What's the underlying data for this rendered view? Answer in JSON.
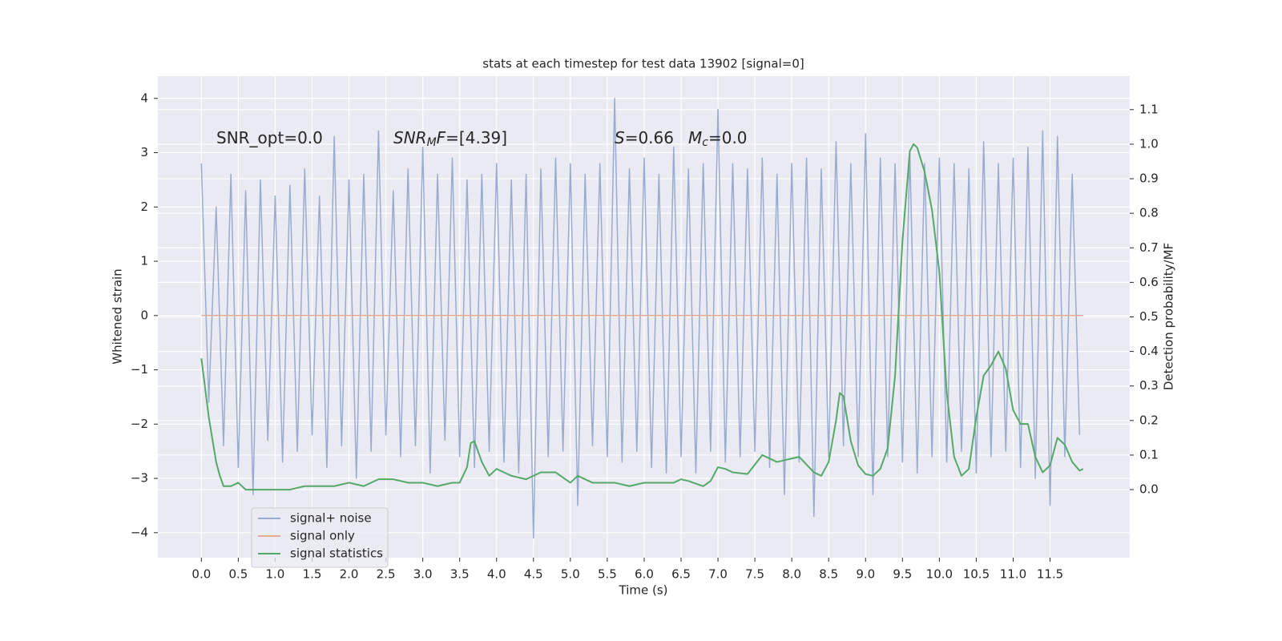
{
  "chart_data": {
    "type": "line",
    "title": "stats at each timestep for test data 13902 [signal=0]",
    "xlabel": "Time (s)",
    "ylabel": "Whitened strain",
    "y2label": "Detection probability/MF",
    "xlim": [
      -0.59,
      12.58
    ],
    "ylim": [
      -4.46,
      4.41
    ],
    "y2lim": [
      -0.197,
      1.197
    ],
    "grid": true,
    "legend": "lower left",
    "xticks": [
      {
        "value": 0,
        "label": "0.0"
      },
      {
        "value": 0.5,
        "label": "0.5"
      },
      {
        "value": 1,
        "label": "1.0"
      },
      {
        "value": 1.5,
        "label": "1.5"
      },
      {
        "value": 2,
        "label": "2.0"
      },
      {
        "value": 2.5,
        "label": "2.5"
      },
      {
        "value": 3,
        "label": "3.0"
      },
      {
        "value": 3.5,
        "label": "3.5"
      },
      {
        "value": 4,
        "label": "4.0"
      },
      {
        "value": 4.5,
        "label": "4.5"
      },
      {
        "value": 5,
        "label": "5.0"
      },
      {
        "value": 5.5,
        "label": "5.5"
      },
      {
        "value": 6,
        "label": "6.0"
      },
      {
        "value": 6.5,
        "label": "6.5"
      },
      {
        "value": 7,
        "label": "7.0"
      },
      {
        "value": 7.5,
        "label": "7.5"
      },
      {
        "value": 8,
        "label": "8.0"
      },
      {
        "value": 8.5,
        "label": "8.5"
      },
      {
        "value": 9,
        "label": "9.0"
      },
      {
        "value": 9.5,
        "label": "9.5"
      },
      {
        "value": 10,
        "label": "10.0"
      },
      {
        "value": 10.5,
        "label": "10.5"
      },
      {
        "value": 11,
        "label": "11.0"
      },
      {
        "value": 11.5,
        "label": "11.5"
      }
    ],
    "yticks": [
      {
        "value": -4,
        "label": "−4"
      },
      {
        "value": -3,
        "label": "−3"
      },
      {
        "value": -2,
        "label": "−2"
      },
      {
        "value": -1,
        "label": "−1"
      },
      0,
      1,
      2,
      3,
      4
    ],
    "y2ticks": [
      {
        "value": 0,
        "label": "0.0"
      },
      0.1,
      0.2,
      0.3,
      0.4,
      0.5,
      0.6,
      0.7,
      0.8,
      0.9,
      {
        "value": 1,
        "label": "1.0"
      },
      1.1
    ],
    "annotations": [
      {
        "parts": [
          {
            "text": "SNR_opt=0.0"
          }
        ]
      },
      {
        "parts": [
          {
            "text": "SNR",
            "italic": true
          },
          {
            "text": "M",
            "italic": true,
            "sub": true
          },
          {
            "text": "F",
            "italic": true
          },
          {
            "text": "=[4.39]"
          }
        ]
      },
      {
        "parts": [
          {
            "text": "S",
            "italic": true
          },
          {
            "text": "=0.66"
          }
        ]
      },
      {
        "parts": [
          {
            "text": "M",
            "italic": true
          },
          {
            "text": "c",
            "italic": true,
            "sub": true
          },
          {
            "text": "=0.0"
          }
        ]
      }
    ],
    "series": [
      {
        "name": "signal+ noise",
        "color": "#9aabd0",
        "x": [
          0,
          0.1,
          0.2,
          0.3,
          0.4,
          0.5,
          0.6,
          0.7,
          0.8,
          0.9,
          1,
          1.1,
          1.2,
          1.3,
          1.4,
          1.5,
          1.6,
          1.7,
          1.8,
          1.9,
          2,
          2.1,
          2.2,
          2.3,
          2.4,
          2.5,
          2.6,
          2.7,
          2.8,
          2.9,
          3,
          3.1,
          3.2,
          3.3,
          3.4,
          3.5,
          3.6,
          3.7,
          3.8,
          3.9,
          4,
          4.1,
          4.2,
          4.3,
          4.4,
          4.5,
          4.6,
          4.7,
          4.8,
          4.9,
          5,
          5.1,
          5.2,
          5.3,
          5.4,
          5.5,
          5.6,
          5.7,
          5.8,
          5.9,
          6,
          6.1,
          6.2,
          6.3,
          6.4,
          6.5,
          6.6,
          6.7,
          6.8,
          6.9,
          7,
          7.1,
          7.2,
          7.3,
          7.4,
          7.5,
          7.6,
          7.7,
          7.8,
          7.9,
          8,
          8.1,
          8.2,
          8.3,
          8.4,
          8.5,
          8.6,
          8.7,
          8.8,
          8.9,
          9,
          9.1,
          9.2,
          9.3,
          9.4,
          9.5,
          9.6,
          9.7,
          9.8,
          9.9,
          10,
          10.1,
          10.2,
          10.3,
          10.4,
          10.5,
          10.6,
          10.7,
          10.8,
          10.9,
          11,
          11.1,
          11.2,
          11.3,
          11.4,
          11.5,
          11.6,
          11.7,
          11.8,
          11.9
        ],
        "values": [
          2.8,
          -1.6,
          2.0,
          -2.4,
          2.6,
          -2.8,
          2.3,
          -3.3,
          2.5,
          -2.3,
          2.2,
          -2.7,
          2.4,
          -2.5,
          2.7,
          -2.2,
          2.2,
          -2.8,
          3.3,
          -2.4,
          2.5,
          -3.0,
          2.6,
          -2.5,
          3.4,
          -2.2,
          2.3,
          -2.6,
          2.7,
          -2.4,
          3.1,
          -2.9,
          2.6,
          -2.3,
          2.9,
          -2.6,
          2.5,
          -2.8,
          2.6,
          -2.5,
          2.8,
          -2.7,
          2.5,
          -2.9,
          2.6,
          -4.1,
          2.7,
          -2.6,
          2.9,
          -2.5,
          2.8,
          -3.5,
          2.6,
          -2.4,
          2.8,
          -2.6,
          4.0,
          -2.7,
          2.7,
          -2.5,
          2.9,
          -2.8,
          2.6,
          -2.9,
          3.1,
          -2.6,
          2.7,
          -2.9,
          2.8,
          -2.5,
          3.8,
          -2.7,
          2.8,
          -2.6,
          2.7,
          -2.5,
          2.9,
          -2.8,
          2.6,
          -3.3,
          2.8,
          -2.7,
          2.9,
          -3.7,
          2.7,
          -2.6,
          3.2,
          -2.4,
          2.8,
          -2.6,
          3.35,
          -3.3,
          2.9,
          -2.6,
          2.8,
          -2.7,
          3.0,
          -2.9,
          2.8,
          -2.6,
          2.9,
          -2.7,
          2.8,
          -2.5,
          2.7,
          -2.9,
          3.2,
          -2.6,
          2.8,
          -2.5,
          2.9,
          -2.8,
          3.1,
          -3.0,
          3.4,
          -3.5,
          3.3,
          -2.6,
          2.6,
          -2.2
        ]
      },
      {
        "name": "signal only",
        "color": "#e5ab93",
        "x": [
          0,
          11.95
        ],
        "values": [
          0,
          0
        ]
      },
      {
        "name": "signal statistics",
        "color": "#55a868",
        "axis": "y2",
        "x": [
          0,
          0.1,
          0.2,
          0.25,
          0.3,
          0.4,
          0.5,
          0.6,
          0.8,
          1,
          1.2,
          1.4,
          1.6,
          1.8,
          2,
          2.2,
          2.4,
          2.6,
          2.8,
          3,
          3.2,
          3.4,
          3.5,
          3.6,
          3.65,
          3.7,
          3.8,
          3.9,
          4,
          4.1,
          4.2,
          4.4,
          4.6,
          4.8,
          5,
          5.1,
          5.3,
          5.6,
          5.8,
          6,
          6.2,
          6.4,
          6.5,
          6.6,
          6.8,
          6.9,
          7,
          7.1,
          7.2,
          7.4,
          7.6,
          7.8,
          8,
          8.1,
          8.3,
          8.4,
          8.5,
          8.6,
          8.65,
          8.7,
          8.8,
          8.9,
          9,
          9.1,
          9.2,
          9.3,
          9.4,
          9.5,
          9.6,
          9.65,
          9.7,
          9.8,
          9.9,
          10,
          10.1,
          10.2,
          10.3,
          10.4,
          10.5,
          10.6,
          10.7,
          10.8,
          10.9,
          11,
          11.1,
          11.2,
          11.3,
          11.4,
          11.5,
          11.6,
          11.7,
          11.8,
          11.9,
          11.95
        ],
        "values": [
          0.38,
          0.21,
          0.08,
          0.04,
          0.01,
          0.01,
          0.02,
          0.0,
          0.0,
          0.0,
          0.0,
          0.01,
          0.01,
          0.01,
          0.02,
          0.01,
          0.03,
          0.03,
          0.02,
          0.02,
          0.01,
          0.02,
          0.02,
          0.065,
          0.135,
          0.14,
          0.08,
          0.04,
          0.06,
          0.05,
          0.04,
          0.03,
          0.05,
          0.05,
          0.02,
          0.04,
          0.02,
          0.02,
          0.01,
          0.02,
          0.02,
          0.02,
          0.03,
          0.025,
          0.01,
          0.025,
          0.065,
          0.06,
          0.05,
          0.045,
          0.1,
          0.08,
          0.09,
          0.095,
          0.05,
          0.04,
          0.08,
          0.2,
          0.28,
          0.27,
          0.14,
          0.07,
          0.045,
          0.04,
          0.06,
          0.12,
          0.33,
          0.72,
          0.98,
          1.0,
          0.99,
          0.92,
          0.81,
          0.63,
          0.28,
          0.095,
          0.04,
          0.06,
          0.21,
          0.33,
          0.36,
          0.4,
          0.35,
          0.23,
          0.19,
          0.19,
          0.095,
          0.05,
          0.07,
          0.15,
          0.13,
          0.08,
          0.055,
          0.06
        ]
      }
    ]
  }
}
